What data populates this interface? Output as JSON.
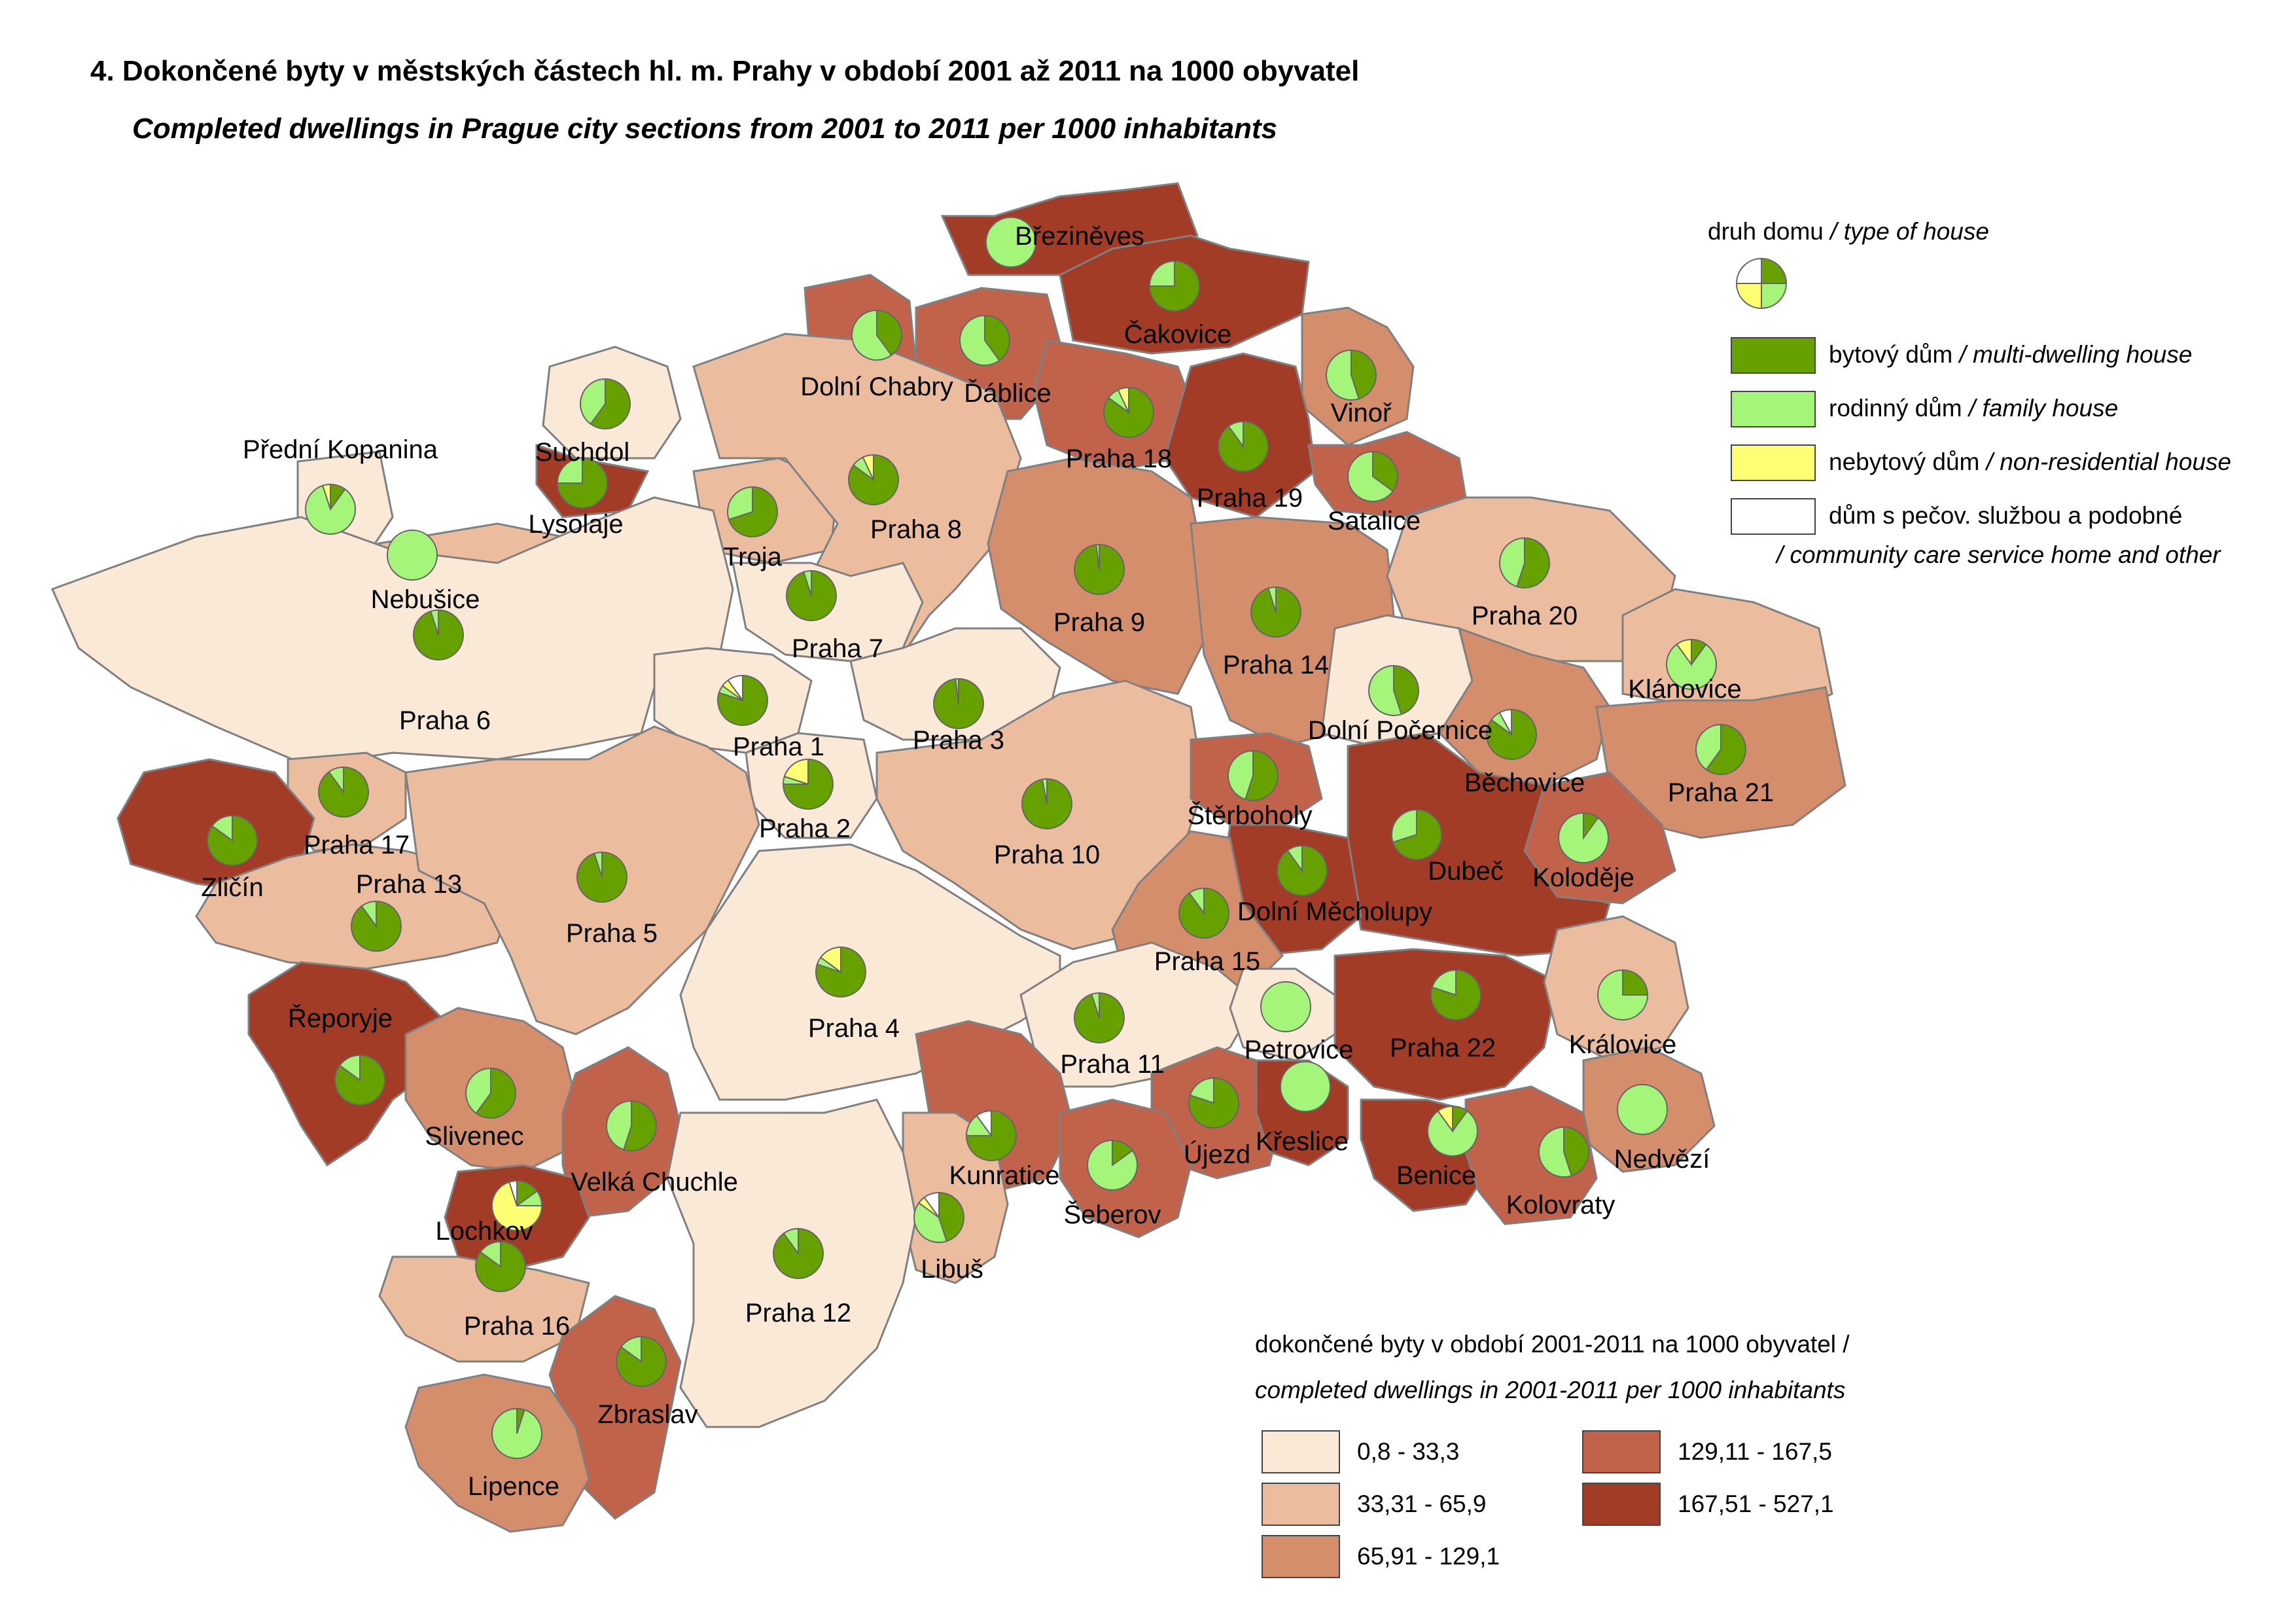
{
  "title": "4. Dokončené byty v městských částech hl. m. Prahy v období 2001 až 2011 na 1000 obyvatel",
  "subtitle": "Completed dwellings in Prague city sections from 2001 to 2011 per 1000 inhabitants",
  "colors": {
    "class1": "#fbe9d8",
    "class2": "#ebbd9e",
    "class3": "#d48e6c",
    "class4": "#c0634a",
    "class5": "#a33c27",
    "multi": "#66a100",
    "family": "#a5f57a",
    "nonres": "#ffff73",
    "care": "#ffffff",
    "border": "#808080"
  },
  "house_legend": {
    "head_cz": "druh domu",
    "head_en": "/ type of house",
    "items": [
      {
        "key": "multi",
        "cz": "bytový dům",
        "en": "/ multi-dwelling house"
      },
      {
        "key": "family",
        "cz": "rodinný dům",
        "en": "/ family house"
      },
      {
        "key": "nonres",
        "cz": "nebytový dům",
        "en": "/ non-residential house"
      },
      {
        "key": "care",
        "cz": "dům s pečov. službou a podobné",
        "en": "/ community care service home and other"
      }
    ]
  },
  "density_legend": {
    "head_cz": "dokončené byty v období 2001-2011 na 1000 obyvatel /",
    "head_en": "completed dwellings in 2001-2011 per 1000 inhabitants",
    "classes": [
      {
        "key": "class1",
        "label": "0,8 - 33,3"
      },
      {
        "key": "class2",
        "label": "33,31 - 65,9"
      },
      {
        "key": "class3",
        "label": "65,91 - 129,1"
      },
      {
        "key": "class4",
        "label": "129,11 - 167,5"
      },
      {
        "key": "class5",
        "label": "167,51 - 527,1"
      }
    ]
  },
  "districts": [
    {
      "name": "Březiněves",
      "class": "class5",
      "shares": [
        0,
        1,
        0,
        0
      ]
    },
    {
      "name": "Čakovice",
      "class": "class5",
      "shares": [
        0.75,
        0.25,
        0,
        0
      ]
    },
    {
      "name": "Dolní Chabry",
      "class": "class4",
      "shares": [
        0.4,
        0.6,
        0,
        0
      ]
    },
    {
      "name": "Ďáblice",
      "class": "class4",
      "shares": [
        0.4,
        0.6,
        0,
        0
      ]
    },
    {
      "name": "Vinoř",
      "class": "class3",
      "shares": [
        0.45,
        0.55,
        0,
        0
      ]
    },
    {
      "name": "Praha 18",
      "class": "class4",
      "shares": [
        0.85,
        0.08,
        0.07,
        0
      ]
    },
    {
      "name": "Praha 19",
      "class": "class5",
      "shares": [
        0.9,
        0.1,
        0,
        0
      ]
    },
    {
      "name": "Satalice",
      "class": "class4",
      "shares": [
        0.35,
        0.65,
        0,
        0
      ]
    },
    {
      "name": "Suchdol",
      "class": "class1",
      "shares": [
        0.6,
        0.4,
        0,
        0
      ]
    },
    {
      "name": "Lysolaje",
      "class": "class5",
      "shares": [
        0.75,
        0.25,
        0,
        0
      ]
    },
    {
      "name": "Přední Kopanina",
      "class": "class1",
      "shares": [
        0.1,
        0.85,
        0.05,
        0
      ]
    },
    {
      "name": "Nebušice",
      "class": "class2",
      "shares": [
        0,
        1,
        0,
        0
      ]
    },
    {
      "name": "Troja",
      "class": "class2",
      "shares": [
        0.7,
        0.3,
        0,
        0
      ]
    },
    {
      "name": "Praha 8",
      "class": "class2",
      "shares": [
        0.85,
        0.08,
        0.07,
        0
      ]
    },
    {
      "name": "Praha 6",
      "class": "class1",
      "shares": [
        0.95,
        0.05,
        0,
        0
      ]
    },
    {
      "name": "Praha 7",
      "class": "class1",
      "shares": [
        0.95,
        0.05,
        0,
        0
      ]
    },
    {
      "name": "Praha 9",
      "class": "class3",
      "shares": [
        0.98,
        0.02,
        0,
        0
      ]
    },
    {
      "name": "Praha 14",
      "class": "class3",
      "shares": [
        0.95,
        0.05,
        0,
        0
      ]
    },
    {
      "name": "Praha 20",
      "class": "class2",
      "shares": [
        0.55,
        0.45,
        0,
        0
      ]
    },
    {
      "name": "Klánovice",
      "class": "class2",
      "shares": [
        0.1,
        0.8,
        0.1,
        0
      ]
    },
    {
      "name": "Praha 1",
      "class": "class1",
      "shares": [
        0.8,
        0.05,
        0.05,
        0.1
      ]
    },
    {
      "name": "Praha 3",
      "class": "class1",
      "shares": [
        0.98,
        0.02,
        0,
        0
      ]
    },
    {
      "name": "Dolní Počernice",
      "class": "class1",
      "shares": [
        0.45,
        0.55,
        0,
        0
      ]
    },
    {
      "name": "Běchovice",
      "class": "class3",
      "shares": [
        0.85,
        0.07,
        0,
        0.08
      ]
    },
    {
      "name": "Praha 21",
      "class": "class3",
      "shares": [
        0.6,
        0.4,
        0,
        0
      ]
    },
    {
      "name": "Praha 2",
      "class": "class1",
      "shares": [
        0.75,
        0.05,
        0.2,
        0
      ]
    },
    {
      "name": "Praha 10",
      "class": "class2",
      "shares": [
        0.97,
        0.03,
        0,
        0
      ]
    },
    {
      "name": "Štěrboholy",
      "class": "class4",
      "shares": [
        0.55,
        0.45,
        0,
        0
      ]
    },
    {
      "name": "Dubeč",
      "class": "class5",
      "shares": [
        0.7,
        0.3,
        0,
        0
      ]
    },
    {
      "name": "Koloděje",
      "class": "class4",
      "shares": [
        0.1,
        0.9,
        0,
        0
      ]
    },
    {
      "name": "Praha 17",
      "class": "class2",
      "shares": [
        0.9,
        0.1,
        0,
        0
      ]
    },
    {
      "name": "Zličín",
      "class": "class5",
      "shares": [
        0.85,
        0.15,
        0,
        0
      ]
    },
    {
      "name": "Praha 13",
      "class": "class2",
      "shares": [
        0.9,
        0.1,
        0,
        0
      ]
    },
    {
      "name": "Praha 5",
      "class": "class2",
      "shares": [
        0.95,
        0.05,
        0,
        0
      ]
    },
    {
      "name": "Dolní Měcholupy",
      "class": "class5",
      "shares": [
        0.9,
        0.1,
        0,
        0
      ]
    },
    {
      "name": "Praha 15",
      "class": "class3",
      "shares": [
        0.9,
        0.1,
        0,
        0
      ]
    },
    {
      "name": "Praha 4",
      "class": "class1",
      "shares": [
        0.8,
        0.05,
        0.15,
        0
      ]
    },
    {
      "name": "Řeporyje",
      "class": "class5",
      "shares": [
        0.85,
        0.15,
        0,
        0
      ]
    },
    {
      "name": "Praha 11",
      "class": "class1",
      "shares": [
        0.95,
        0.05,
        0,
        0
      ]
    },
    {
      "name": "Petrovice",
      "class": "class1",
      "shares": [
        0,
        1,
        0,
        0
      ]
    },
    {
      "name": "Praha 22",
      "class": "class5",
      "shares": [
        0.8,
        0.2,
        0,
        0
      ]
    },
    {
      "name": "Královice",
      "class": "class2",
      "shares": [
        0.25,
        0.75,
        0,
        0
      ]
    },
    {
      "name": "Slivenec",
      "class": "class3",
      "shares": [
        0.6,
        0.4,
        0,
        0
      ]
    },
    {
      "name": "Velká Chuchle",
      "class": "class4",
      "shares": [
        0.55,
        0.45,
        0,
        0
      ]
    },
    {
      "name": "Kunratice",
      "class": "class4",
      "shares": [
        0.75,
        0.15,
        0,
        0.1
      ]
    },
    {
      "name": "Újezd",
      "class": "class4",
      "shares": [
        0.8,
        0.2,
        0,
        0
      ]
    },
    {
      "name": "Křeslice",
      "class": "class5",
      "shares": [
        0,
        1,
        0,
        0
      ]
    },
    {
      "name": "Benice",
      "class": "class5",
      "shares": [
        0.1,
        0.8,
        0.1,
        0
      ]
    },
    {
      "name": "Nedvězí",
      "class": "class3",
      "shares": [
        0,
        1,
        0,
        0
      ]
    },
    {
      "name": "Lochkov",
      "class": "class5",
      "shares": [
        0.15,
        0.1,
        0.7,
        0.05
      ]
    },
    {
      "name": "Šeberov",
      "class": "class4",
      "shares": [
        0.15,
        0.85,
        0,
        0
      ]
    },
    {
      "name": "Kolovraty",
      "class": "class4",
      "shares": [
        0.45,
        0.55,
        0,
        0
      ]
    },
    {
      "name": "Libuš",
      "class": "class2",
      "shares": [
        0.45,
        0.4,
        0.05,
        0.1
      ]
    },
    {
      "name": "Praha 12",
      "class": "class1",
      "shares": [
        0.9,
        0.1,
        0,
        0
      ]
    },
    {
      "name": "Praha 16",
      "class": "class2",
      "shares": [
        0.85,
        0.15,
        0,
        0
      ]
    },
    {
      "name": "Zbraslav",
      "class": "class4",
      "shares": [
        0.85,
        0.15,
        0,
        0
      ]
    },
    {
      "name": "Lipence",
      "class": "class3",
      "shares": [
        0.05,
        0.95,
        0,
        0
      ]
    }
  ]
}
